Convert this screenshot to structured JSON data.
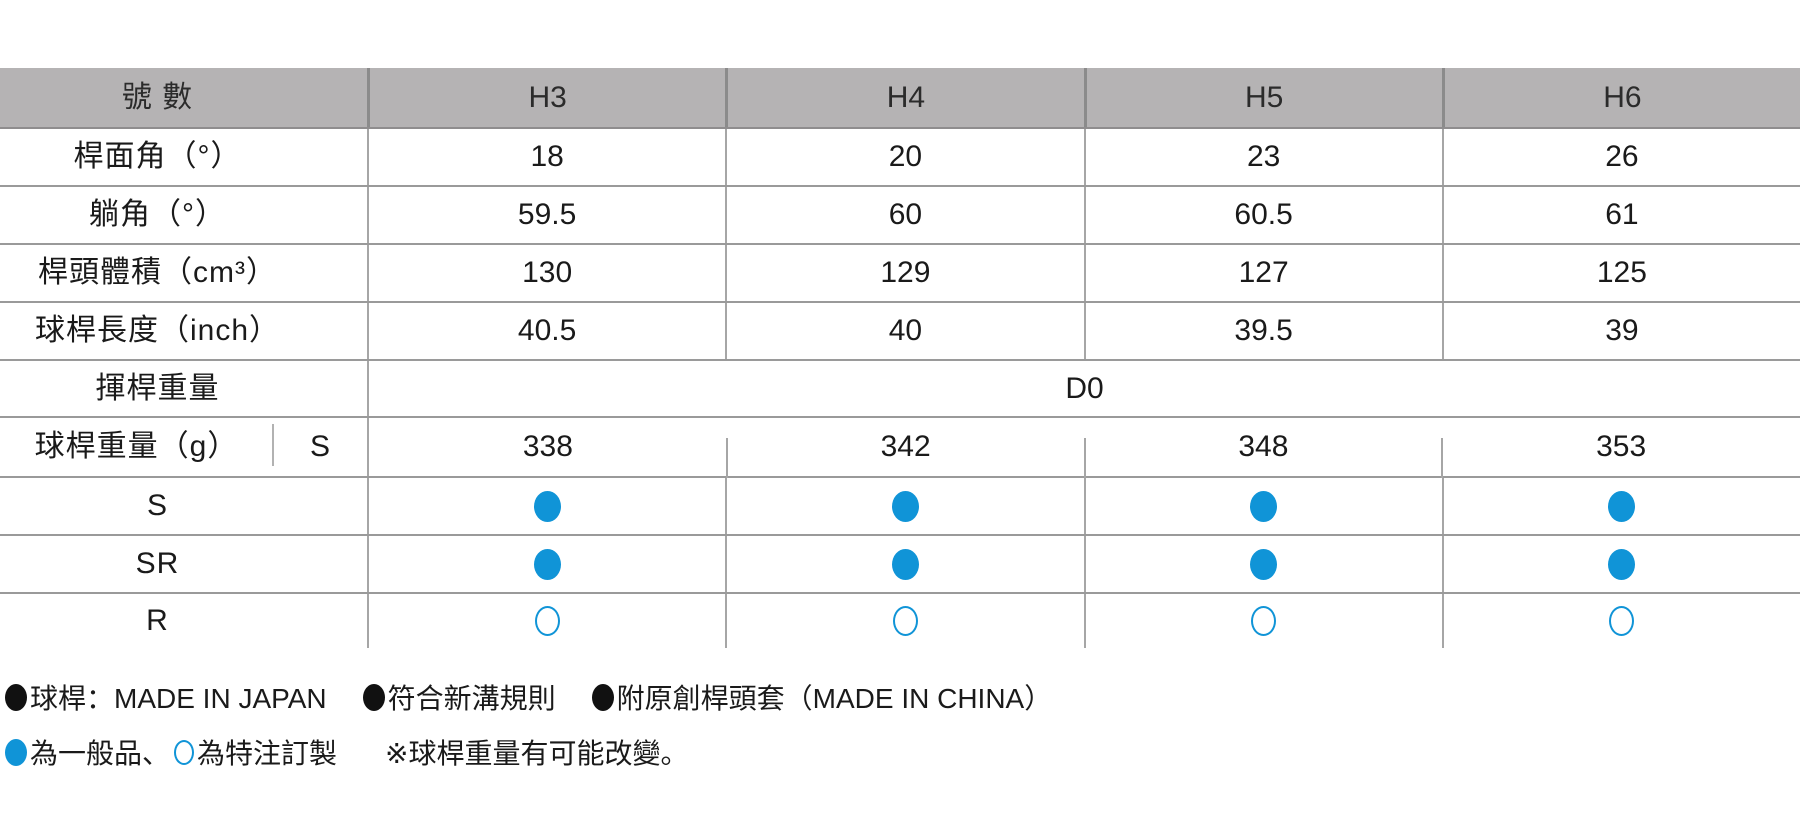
{
  "table": {
    "header": {
      "label": "號 數",
      "columns": [
        "H3",
        "H4",
        "H5",
        "H6"
      ]
    },
    "spec_rows": [
      {
        "label": "桿面角（°）",
        "values": [
          "18",
          "20",
          "23",
          "26"
        ]
      },
      {
        "label": "躺角（°）",
        "values": [
          "59.5",
          "60",
          "60.5",
          "61"
        ]
      },
      {
        "label": "桿頭體積（cm³）",
        "values": [
          "130",
          "129",
          "127",
          "125"
        ]
      },
      {
        "label": "球桿長度（inch）",
        "values": [
          "40.5",
          "40",
          "39.5",
          "39"
        ]
      }
    ],
    "swing_weight_row": {
      "label": "揮桿重量",
      "value": "D0"
    },
    "club_weight_row": {
      "label": "球桿重量（g）",
      "sub_label": "S",
      "values": [
        "338",
        "342",
        "348",
        "353"
      ]
    },
    "flex_rows": [
      {
        "label": "S",
        "values": [
          "filled",
          "filled",
          "filled",
          "filled"
        ]
      },
      {
        "label": "SR",
        "values": [
          "filled",
          "filled",
          "filled",
          "filled"
        ]
      },
      {
        "label": "R",
        "values": [
          "outline",
          "outline",
          "outline",
          "outline"
        ]
      }
    ]
  },
  "footnotes": {
    "line1_items": [
      "球桿：MADE IN JAPAN",
      "符合新溝規則",
      "附原創桿頭套（MADE IN CHINA）"
    ],
    "line2": {
      "filled_meaning": "為一般品、",
      "outline_meaning": "為特注訂製",
      "note": "※球桿重量有可能改變。"
    }
  },
  "colors": {
    "accent_blue": "#1094d7",
    "header_bg": "#b5b3b4",
    "grid_line": "#9a9a9a",
    "text": "#1a1a1a"
  }
}
